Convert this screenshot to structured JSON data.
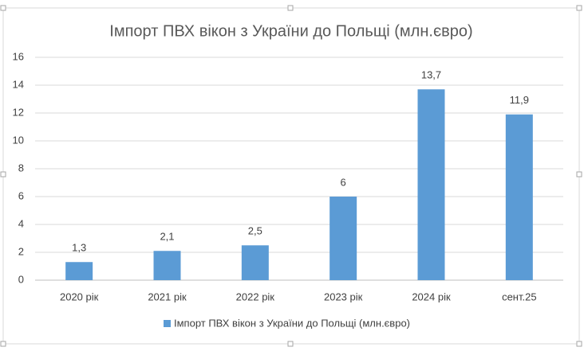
{
  "chart_data": {
    "type": "bar",
    "title": "Імпорт ПВХ вікон з України до Польщі (млн.євро)",
    "categories": [
      "2020 рік",
      "2021 рік",
      "2022 рік",
      "2023 рік",
      "2024 рік",
      "сент.25"
    ],
    "series": [
      {
        "name": "Імпорт ПВХ вікон з України до Польщі (млн.євро)",
        "color": "#5b9bd5",
        "values": [
          1.3,
          2.1,
          2.5,
          6,
          13.7,
          11.9
        ],
        "value_labels": [
          "1,3",
          "2,1",
          "2,5",
          "6",
          "13,7",
          "11,9"
        ]
      }
    ],
    "ylim": [
      0,
      16
    ],
    "yticks": [
      0,
      2,
      4,
      6,
      8,
      10,
      12,
      14,
      16
    ],
    "grid": true,
    "legend": "bottom"
  }
}
